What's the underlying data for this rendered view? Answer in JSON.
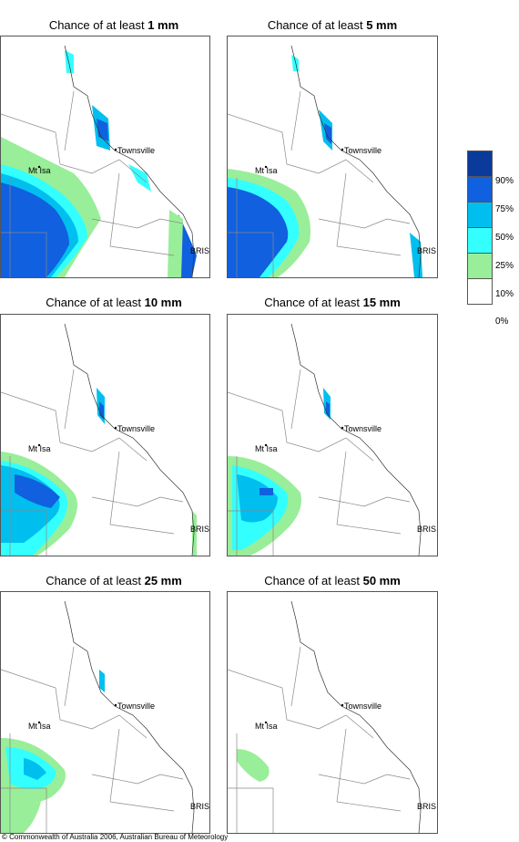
{
  "panels": [
    {
      "prefix": "Chance of at least ",
      "amount": "1 mm"
    },
    {
      "prefix": "Chance of at least ",
      "amount": "5 mm"
    },
    {
      "prefix": "Chance of at least ",
      "amount": "10 mm"
    },
    {
      "prefix": "Chance of at least ",
      "amount": "15 mm"
    },
    {
      "prefix": "Chance of at least ",
      "amount": "25 mm"
    },
    {
      "prefix": "Chance of at least ",
      "amount": "50 mm"
    }
  ],
  "places": {
    "mt_isa": "Mt Isa",
    "townsville": "Townsville",
    "bris": "BRIS"
  },
  "legend": {
    "labels": [
      "90%",
      "75%",
      "50%",
      "25%",
      "10%",
      "0%"
    ],
    "colors": [
      "#0a3a9a",
      "#1060e0",
      "#00bfef",
      "#33ffff",
      "#99ee99",
      "#ffffff"
    ]
  },
  "copyright": "© Commonwealth of Australia 2006, Australian Bureau of Meteorology"
}
